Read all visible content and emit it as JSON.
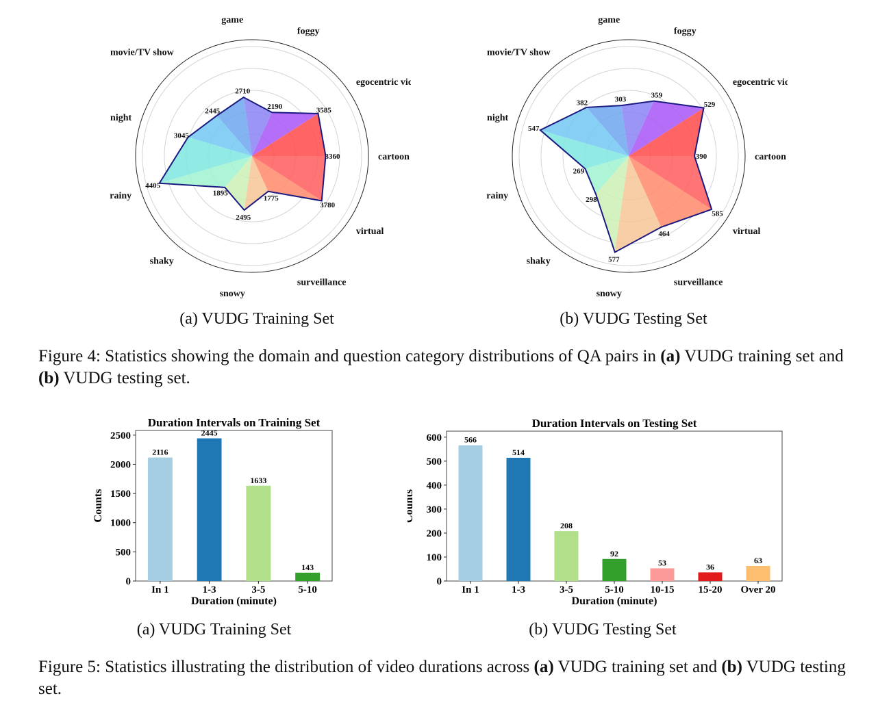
{
  "figure4": {
    "label": "Figure 4:",
    "caption_pre": "Statistics showing the domain and question category distributions of QA pairs in",
    "a": "(a)",
    "mid": "VUDG training set and",
    "b": "(b)",
    "post": "VUDG testing set.",
    "sub_a": "(a) VUDG Training Set",
    "sub_b": "(b) VUDG Testing Set"
  },
  "figure5": {
    "label": "Figure 5:",
    "caption_pre": "Statistics illustrating the distribution of video durations across",
    "a": "(a)",
    "mid": "VUDG training set and",
    "b": "(b)",
    "post": "VUDG testing set.",
    "sub_a": "(a) VUDG Training Set",
    "sub_b": "(b) VUDG Testing Set"
  },
  "chart_data": [
    {
      "type": "radar",
      "categories": [
        "cartoon",
        "egocentric video",
        "foggy",
        "game",
        "movie/TV show",
        "night",
        "rainy",
        "shaky",
        "snowy",
        "surveillance",
        "virtual"
      ],
      "values": [
        3360,
        3585,
        2190,
        2710,
        2445,
        3045,
        4405,
        1895,
        2495,
        1775,
        3780
      ],
      "rmax": 5000,
      "colors": [
        "#ff4a4a",
        "#a855f7",
        "#8a82f3",
        "#6ea6f0",
        "#72c7f3",
        "#7fe6e1",
        "#9ff3cf",
        "#cdf0b4",
        "#f6c596",
        "#ff8a6a",
        "#ff5c5c"
      ],
      "outline_color": "#1a1a80"
    },
    {
      "type": "radar",
      "categories": [
        "cartoon",
        "egocentric video",
        "foggy",
        "game",
        "movie/TV show",
        "night",
        "rainy",
        "shaky",
        "snowy",
        "surveillance",
        "virtual"
      ],
      "values": [
        390,
        529,
        359,
        303,
        382,
        547,
        269,
        298,
        577,
        464,
        585
      ],
      "rmax": 650,
      "colors": [
        "#ff4a4a",
        "#a855f7",
        "#8a82f3",
        "#6ea6f0",
        "#72c7f3",
        "#7fe6e1",
        "#9ff3cf",
        "#cdf0b4",
        "#f6c596",
        "#ff8a6a",
        "#ff5c5c"
      ],
      "outline_color": "#1a1a80"
    },
    {
      "type": "bar",
      "title": "Duration Intervals on Training Set",
      "xlabel": "Duration (minute)",
      "ylabel": "Counts",
      "categories": [
        "In 1",
        "1-3",
        "3-5",
        "5-10"
      ],
      "values": [
        2116,
        2445,
        1633,
        143
      ],
      "colors": [
        "#a6cee3",
        "#1f78b4",
        "#b2df8a",
        "#33a02c"
      ],
      "ylim": [
        0,
        2580
      ],
      "yticks": [
        0,
        500,
        1000,
        1500,
        2000,
        2500
      ]
    },
    {
      "type": "bar",
      "title": "Duration Intervals on Testing Set",
      "xlabel": "Duration (minute)",
      "ylabel": "Counts",
      "categories": [
        "In 1",
        "1-3",
        "3-5",
        "5-10",
        "10-15",
        "15-20",
        "Over 20"
      ],
      "values": [
        566,
        514,
        208,
        92,
        53,
        36,
        63
      ],
      "colors": [
        "#a6cee3",
        "#1f78b4",
        "#b2df8a",
        "#33a02c",
        "#fb9a99",
        "#e31a1c",
        "#fdbf6f"
      ],
      "ylim": [
        0,
        625
      ],
      "yticks": [
        0,
        100,
        200,
        300,
        400,
        500,
        600
      ]
    }
  ]
}
